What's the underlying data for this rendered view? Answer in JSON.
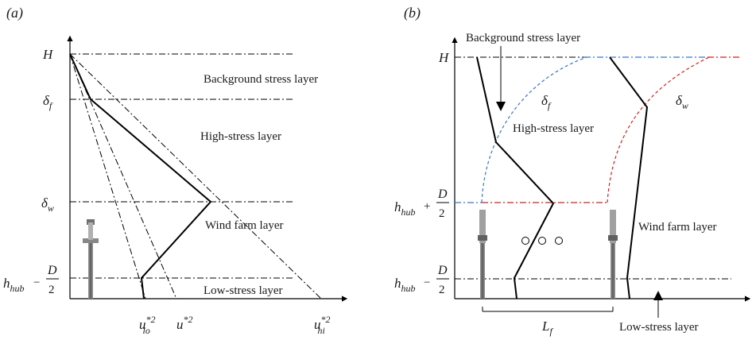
{
  "panel_a": {
    "tag": "(a)",
    "y_labels": {
      "H": "H",
      "delta_f": "δ",
      "delta_f_sub": "f",
      "delta_w": "δ",
      "delta_w_sub": "w",
      "h_main": "h",
      "h_sub": "hub",
      "h_minus": "−",
      "D": "D",
      "two": "2"
    },
    "layers": {
      "background": "Background stress layer",
      "high": "High-stress layer",
      "wind": "Wind farm layer",
      "low": "Low-stress layer"
    },
    "x_labels": {
      "u_lo": "u",
      "u_lo_sup": "*2",
      "u_lo_sub": "lo",
      "u": "u",
      "u_sup": "*2",
      "u_hi": "u",
      "u_hi_sup": "*2",
      "u_hi_sub": "hi"
    }
  },
  "panel_b": {
    "tag": "(b)",
    "y_labels": {
      "H": "H",
      "h_main": "h",
      "h_sub": "hub",
      "plus": "+",
      "minus": "−",
      "D": "D",
      "two": "2"
    },
    "layers": {
      "background": "Background stress layer",
      "high": "High-stress layer",
      "wind": "Wind farm layer",
      "low": "Low-stress layer"
    },
    "delta_f": "δ",
    "delta_f_sub": "f",
    "delta_w": "δ",
    "delta_w_sub": "w",
    "Lf": "L",
    "Lf_sub": "f"
  },
  "colors": {
    "internal_boundary": "#3a78c8",
    "wake_boundary": "#d42020",
    "lines": "#000000"
  }
}
